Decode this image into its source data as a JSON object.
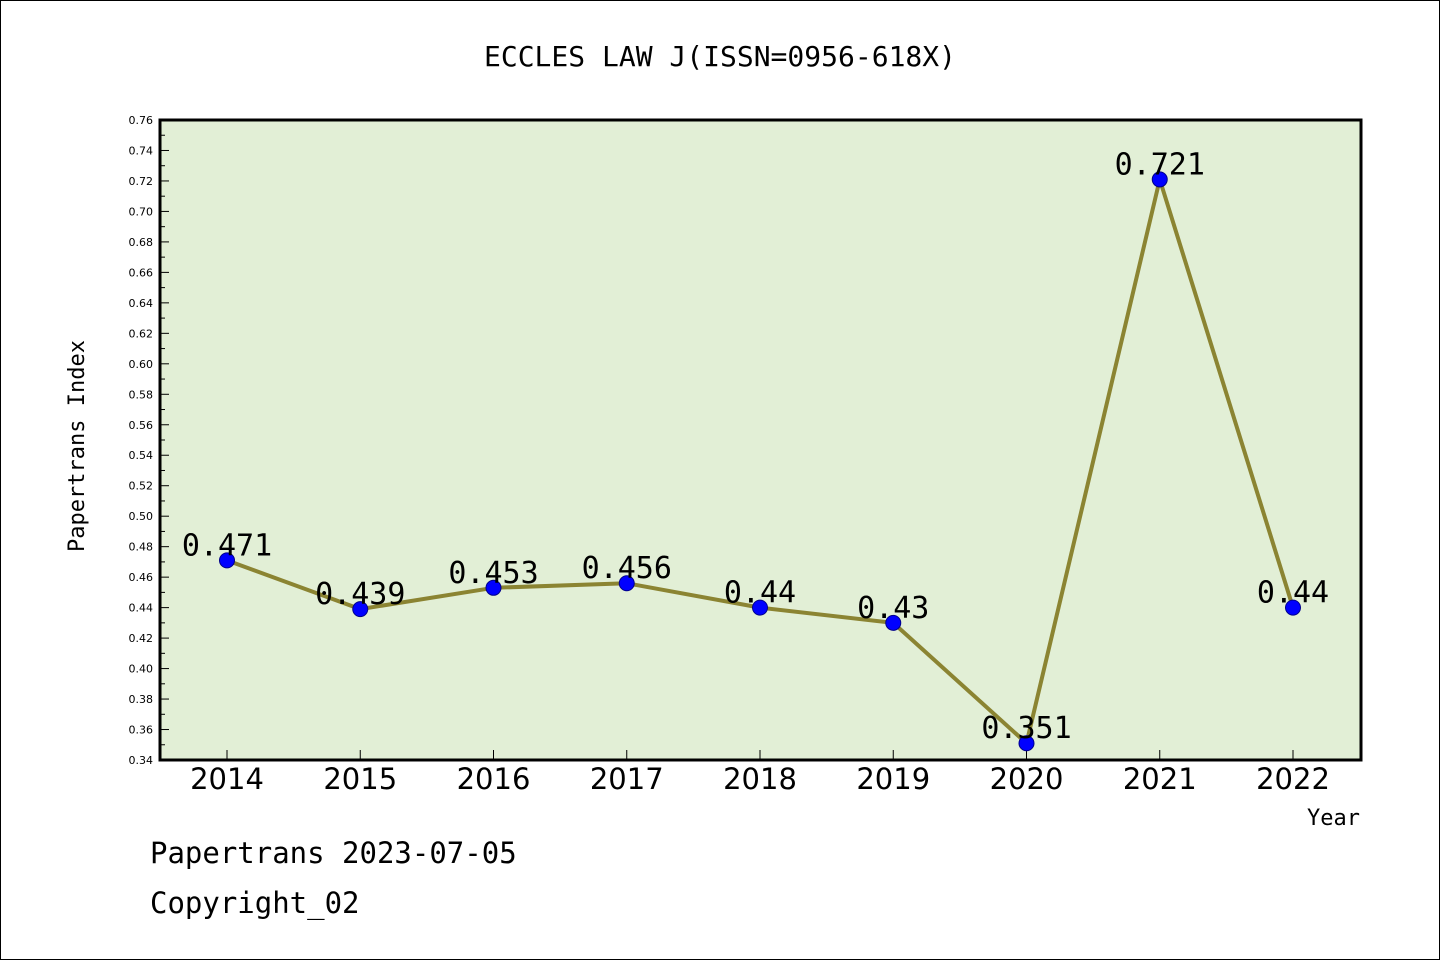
{
  "chart_data": {
    "type": "line",
    "title": "ECCLES LAW J(ISSN=0956-618X)",
    "xlabel": "Year",
    "ylabel": "Papertrans Index",
    "categories": [
      "2014",
      "2015",
      "2016",
      "2017",
      "2018",
      "2019",
      "2020",
      "2021",
      "2022"
    ],
    "values": [
      0.471,
      0.439,
      0.453,
      0.456,
      0.44,
      0.43,
      0.351,
      0.721,
      0.44
    ],
    "data_labels": [
      "0.471",
      "0.439",
      "0.453",
      "0.456",
      "0.44",
      "0.43",
      "0.351",
      "0.721",
      "0.44"
    ],
    "ylim": [
      0.34,
      0.76
    ],
    "yticks": [
      "0.34",
      "0.36",
      "0.38",
      "0.40",
      "0.42",
      "0.44",
      "0.46",
      "0.48",
      "0.50",
      "0.52",
      "0.54",
      "0.56",
      "0.58",
      "0.60",
      "0.62",
      "0.64",
      "0.66",
      "0.68",
      "0.70",
      "0.72",
      "0.74",
      "0.76"
    ],
    "grid": false,
    "colors": {
      "plot_bg": "#e2efd6",
      "line": "#8b8432",
      "marker": "#0000ff"
    }
  },
  "footer": {
    "date_line": "Papertrans 2023-07-05",
    "copyright": "Copyright_02"
  }
}
